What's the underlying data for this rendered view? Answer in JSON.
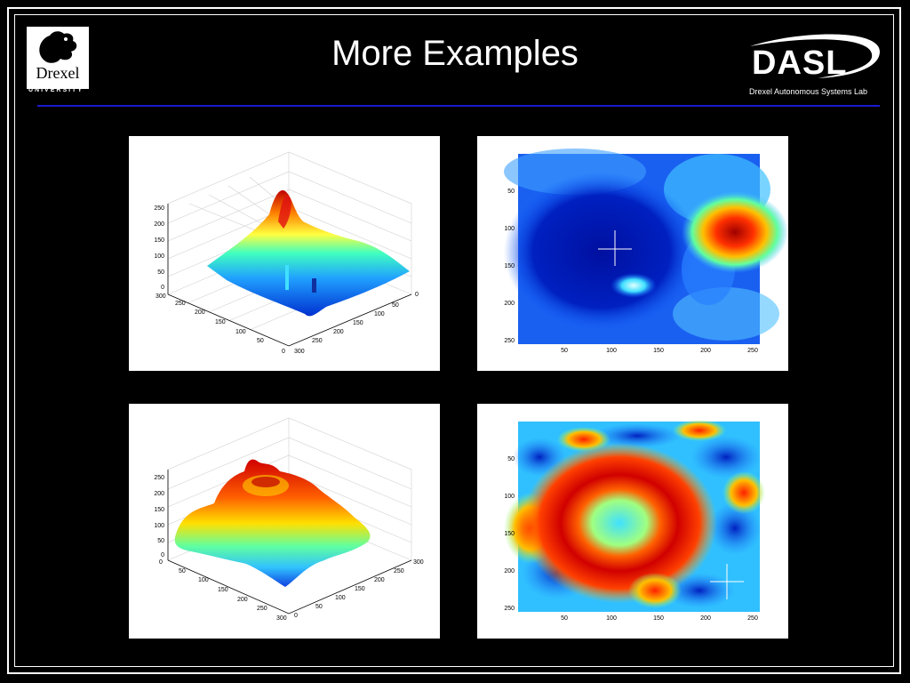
{
  "slide": {
    "title": "More Examples",
    "left_logo": {
      "name": "Drexel",
      "subtitle": "UNIVERSITY"
    },
    "right_logo": {
      "name": "DASL",
      "subtitle": "Drexel Autonomous Systems Lab"
    }
  },
  "colors": {
    "background": "#000000",
    "rule": "#1a1ad0",
    "text": "#ffffff"
  },
  "chart_data": [
    {
      "type": "surface",
      "z_ticks": [
        "0",
        "50",
        "100",
        "150",
        "200",
        "250"
      ],
      "left_axis_ticks": [
        "300",
        "250",
        "200",
        "150",
        "100",
        "50",
        "0"
      ],
      "right_axis_ticks": [
        "0",
        "50",
        "100",
        "150",
        "200",
        "250",
        "300"
      ],
      "zlim": [
        0,
        250
      ]
    },
    {
      "type": "heatmap",
      "x_ticks": [
        "50",
        "100",
        "150",
        "200",
        "250"
      ],
      "y_ticks": [
        "50",
        "100",
        "150",
        "200",
        "250"
      ],
      "marker": {
        "x": 100,
        "y": 125,
        "shape": "cross"
      }
    },
    {
      "type": "surface",
      "z_ticks": [
        "0",
        "50",
        "100",
        "150",
        "200",
        "250"
      ],
      "left_axis_ticks": [
        "0",
        "50",
        "100",
        "150",
        "200",
        "250",
        "300"
      ],
      "right_axis_ticks": [
        "0",
        "50",
        "100",
        "150",
        "200",
        "250",
        "300"
      ],
      "zlim": [
        0,
        250
      ]
    },
    {
      "type": "heatmap",
      "x_ticks": [
        "50",
        "100",
        "150",
        "200",
        "250"
      ],
      "y_ticks": [
        "50",
        "100",
        "150",
        "200",
        "250"
      ],
      "marker": {
        "x": 220,
        "y": 210,
        "shape": "cross"
      }
    }
  ]
}
